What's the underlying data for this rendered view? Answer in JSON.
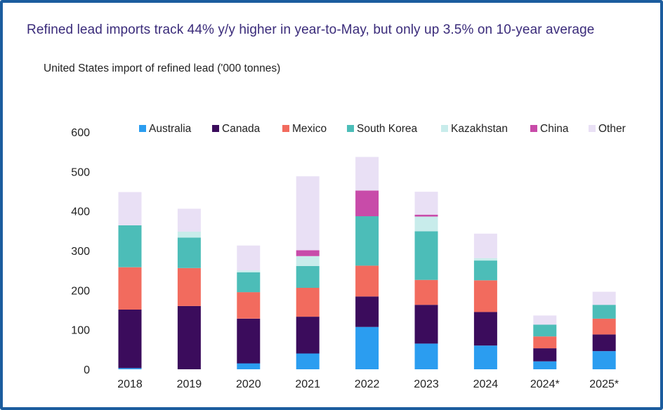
{
  "chart_data": {
    "type": "bar",
    "stacked": true,
    "title": "Refined lead imports track 44% y/y higher in year-to-May, but only up 3.5% on 10-year average",
    "subtitle": "United States import of refined lead ('000 tonnes)",
    "xlabel": "",
    "ylabel": "",
    "ylim": [
      0,
      600
    ],
    "yticks": [
      "0",
      "100",
      "200",
      "300",
      "400",
      "500",
      "600"
    ],
    "ytick_values": [
      0,
      100,
      200,
      300,
      400,
      500,
      600
    ],
    "grid": false,
    "legend_position": "top",
    "categories": [
      "2018",
      "2019",
      "2020",
      "2021",
      "2022",
      "2023",
      "2024",
      "2024*",
      "2025*"
    ],
    "series": [
      {
        "name": "Australia",
        "color": "#2b9df0",
        "values": [
          3,
          0,
          15,
          40,
          107,
          65,
          60,
          20,
          46
        ]
      },
      {
        "name": "Canada",
        "color": "#3b0c5c",
        "values": [
          148,
          160,
          113,
          93,
          77,
          98,
          85,
          33,
          42
        ]
      },
      {
        "name": "Mexico",
        "color": "#f26b5e",
        "values": [
          107,
          96,
          67,
          73,
          78,
          63,
          80,
          30,
          40
        ]
      },
      {
        "name": "South Korea",
        "color": "#4cbdb8",
        "values": [
          106,
          77,
          50,
          55,
          125,
          123,
          50,
          30,
          35
        ]
      },
      {
        "name": "Kazakhstan",
        "color": "#c8eceb",
        "values": [
          0,
          15,
          5,
          25,
          0,
          37,
          6,
          0,
          0
        ]
      },
      {
        "name": "China",
        "color": "#c84ba9",
        "values": [
          0,
          0,
          0,
          15,
          65,
          5,
          0,
          0,
          0
        ]
      },
      {
        "name": "Other",
        "color": "#e9e0f5",
        "values": [
          84,
          58,
          63,
          187,
          85,
          58,
          62,
          23,
          33
        ]
      }
    ]
  }
}
